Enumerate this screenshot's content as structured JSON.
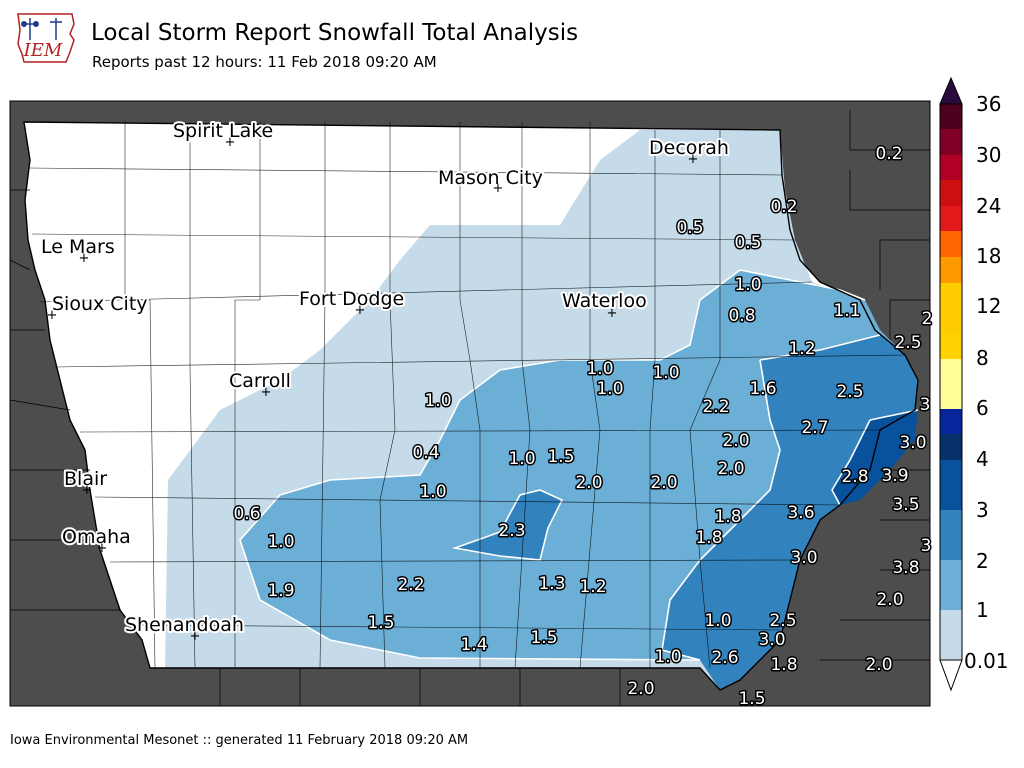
{
  "header": {
    "title": "Local Storm Report Snowfall Total Analysis",
    "subtitle": "Reports past 12 hours: 11 Feb 2018 09:20 AM"
  },
  "logo": {
    "text": "IEM",
    "icon": "iem-iowa-logo"
  },
  "footer": {
    "text": "Iowa Environmental Mesonet :: generated 11 February 2018 09:20 AM"
  },
  "colorbar": {
    "levels": [
      "0.01",
      "1",
      "2",
      "3",
      "4",
      "6",
      "8",
      "12",
      "18",
      "24",
      "30",
      "36"
    ],
    "colors": [
      "#c6dbea",
      "#6baed6",
      "#3182bd",
      "#08519c",
      "#08306b",
      "#ffff99",
      "#ffcc00",
      "#ff9900",
      "#ff6600",
      "#e31a1c",
      "#b10026",
      "#800026",
      "#4d0020",
      "#2b0a3d"
    ]
  },
  "palette": {
    "land": "#ffffff",
    "outside": "#4d4d4d",
    "c1": "#c6dbea",
    "c2": "#6baed6",
    "c3": "#3182bd",
    "c4": "#08519c"
  },
  "cities": [
    {
      "name": "Spirit Lake"
    },
    {
      "name": "Decorah"
    },
    {
      "name": "Mason City"
    },
    {
      "name": "Le Mars"
    },
    {
      "name": "Sioux City"
    },
    {
      "name": "Fort Dodge"
    },
    {
      "name": "Waterloo"
    },
    {
      "name": "Carroll"
    },
    {
      "name": "Blair"
    },
    {
      "name": "Omaha"
    },
    {
      "name": "Shenandoah"
    }
  ],
  "reports": [
    "0.2",
    "0.2",
    "0.5",
    "0.5",
    "1.0",
    "0.8",
    "1.1",
    "2",
    "2.5",
    "1.2",
    "1.0",
    "1.0",
    "1.0",
    "1.6",
    "2.5",
    "3",
    "2.2",
    "1.0",
    "2.7",
    "3.0",
    "0.4",
    "2.0",
    "1.0",
    "1.5",
    "2.0",
    "2.0",
    "2.8",
    "3.9",
    "3.5",
    "1.0",
    "2.0",
    "0.6",
    "1.8",
    "3.6",
    "1.0",
    "2.3",
    "1.8",
    "3",
    "3.0",
    "3.8",
    "1.9",
    "2.2",
    "1.3",
    "1.2",
    "2.0",
    "1.5",
    "1.0",
    "2.5",
    "3.0",
    "1.4",
    "1.5",
    "1.0",
    "2.6",
    "1.8",
    "2.0",
    "2.0",
    "1.5"
  ]
}
